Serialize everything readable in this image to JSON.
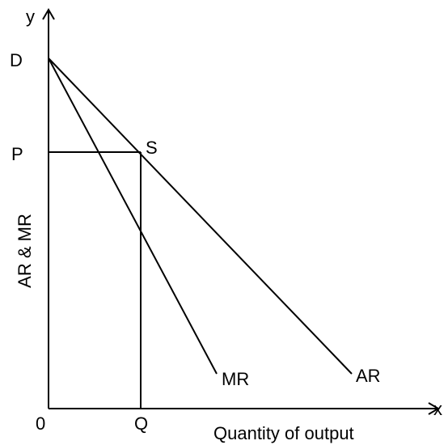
{
  "diagram": {
    "axis_y": "y",
    "axis_x": "x",
    "y_axis_title": "AR & MR",
    "x_axis_title": "Quantity of output",
    "origin": "0",
    "point_d": "D",
    "point_p": "P",
    "point_s": "S",
    "point_q": "Q",
    "curve_mr": "MR",
    "curve_ar": "AR"
  }
}
